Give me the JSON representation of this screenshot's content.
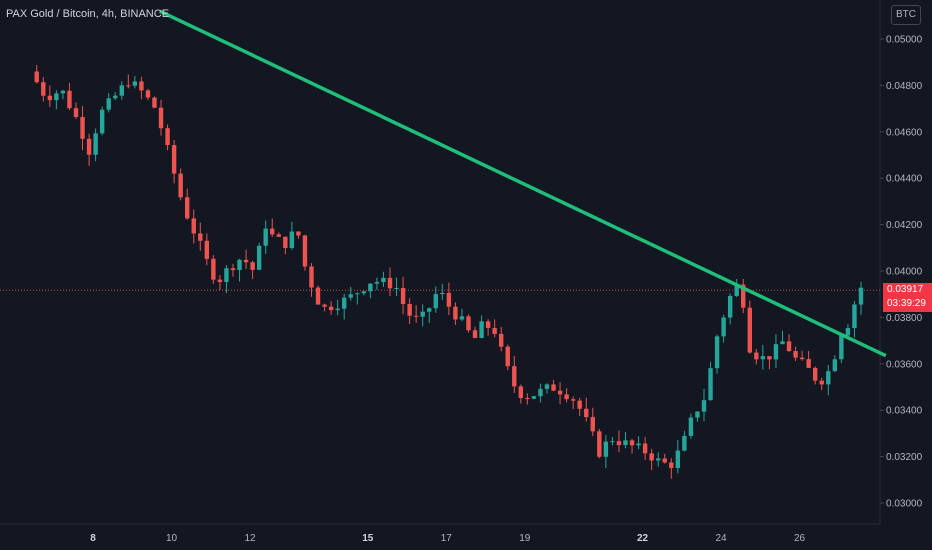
{
  "header": {
    "title": "PAX Gold / Bitcoin, 4h, BINANCE",
    "currency": "BTC"
  },
  "price_tag": {
    "price": "0.03917",
    "countdown": "03:39:29"
  },
  "colors": {
    "background": "#131722",
    "up": "#26a69a",
    "down": "#ef5350",
    "trendline": "#1fbf7a",
    "price_tag": "#f23645",
    "axis_text": "#b2b5be"
  },
  "chart_data": {
    "type": "candlestick",
    "title": "PAX Gold / Bitcoin, 4h, BINANCE",
    "y_axis": {
      "position": "right",
      "ticks": [
        "0.05000",
        "0.04800",
        "0.04600",
        "0.04400",
        "0.04200",
        "0.04000",
        "0.03800",
        "0.03600",
        "0.03400",
        "0.03200",
        "0.03000"
      ],
      "range": [
        0.0292,
        0.0512
      ]
    },
    "x_axis": {
      "ticks": [
        {
          "label": "8",
          "bold": true
        },
        {
          "label": "10",
          "bold": false
        },
        {
          "label": "12",
          "bold": false
        },
        {
          "label": "15",
          "bold": true
        },
        {
          "label": "17",
          "bold": false
        },
        {
          "label": "19",
          "bold": false
        },
        {
          "label": "22",
          "bold": true
        },
        {
          "label": "24",
          "bold": false
        },
        {
          "label": "26",
          "bold": false
        }
      ]
    },
    "current_price": 0.03917,
    "trendline": {
      "from": {
        "day": 9.7,
        "price": 0.0512
      },
      "to": {
        "day": 28.2,
        "price": 0.03635
      }
    },
    "close_path": [
      [
        6.4,
        0.0486
      ],
      [
        6.8,
        0.0475
      ],
      [
        7.2,
        0.0478
      ],
      [
        7.6,
        0.0465
      ],
      [
        7.9,
        0.0452
      ],
      [
        8.2,
        0.0468
      ],
      [
        8.6,
        0.0476
      ],
      [
        8.9,
        0.0482
      ],
      [
        9.2,
        0.0478
      ],
      [
        9.6,
        0.047
      ],
      [
        10.0,
        0.0446
      ],
      [
        10.3,
        0.0428
      ],
      [
        10.7,
        0.0412
      ],
      [
        11.0,
        0.04
      ],
      [
        11.2,
        0.0396
      ],
      [
        11.5,
        0.0402
      ],
      [
        11.8,
        0.0406
      ],
      [
        12.1,
        0.04
      ],
      [
        12.4,
        0.042
      ],
      [
        12.6,
        0.0414
      ],
      [
        12.9,
        0.0412
      ],
      [
        13.2,
        0.0418
      ],
      [
        13.4,
        0.0402
      ],
      [
        13.7,
        0.0388
      ],
      [
        13.9,
        0.0384
      ],
      [
        14.2,
        0.0386
      ],
      [
        14.5,
        0.0388
      ],
      [
        14.8,
        0.0392
      ],
      [
        15.1,
        0.0396
      ],
      [
        15.4,
        0.0395
      ],
      [
        15.7,
        0.0394
      ],
      [
        16.0,
        0.0382
      ],
      [
        16.3,
        0.0378
      ],
      [
        16.5,
        0.0382
      ],
      [
        16.8,
        0.0392
      ],
      [
        17.1,
        0.0384
      ],
      [
        17.4,
        0.0378
      ],
      [
        17.7,
        0.037
      ],
      [
        17.9,
        0.0376
      ],
      [
        18.2,
        0.0376
      ],
      [
        18.5,
        0.036
      ],
      [
        18.8,
        0.0348
      ],
      [
        19.1,
        0.0346
      ],
      [
        19.4,
        0.0348
      ],
      [
        19.7,
        0.035
      ],
      [
        20.0,
        0.0348
      ],
      [
        20.3,
        0.0344
      ],
      [
        20.6,
        0.0334
      ],
      [
        20.9,
        0.0322
      ],
      [
        21.2,
        0.0328
      ],
      [
        21.5,
        0.0326
      ],
      [
        21.8,
        0.0324
      ],
      [
        22.1,
        0.0322
      ],
      [
        22.4,
        0.0318
      ],
      [
        22.7,
        0.0316
      ],
      [
        23.0,
        0.0324
      ],
      [
        23.3,
        0.0338
      ],
      [
        23.6,
        0.0346
      ],
      [
        23.9,
        0.0372
      ],
      [
        24.2,
        0.0388
      ],
      [
        24.5,
        0.0396
      ],
      [
        24.7,
        0.0368
      ],
      [
        25.0,
        0.0362
      ],
      [
        25.3,
        0.0364
      ],
      [
        25.6,
        0.037
      ],
      [
        25.9,
        0.0362
      ],
      [
        26.2,
        0.0358
      ],
      [
        26.5,
        0.0352
      ],
      [
        26.8,
        0.0358
      ],
      [
        27.1,
        0.0376
      ],
      [
        27.3,
        0.0378
      ],
      [
        27.5,
        0.0394
      ],
      [
        27.7,
        0.0391
      ]
    ]
  }
}
